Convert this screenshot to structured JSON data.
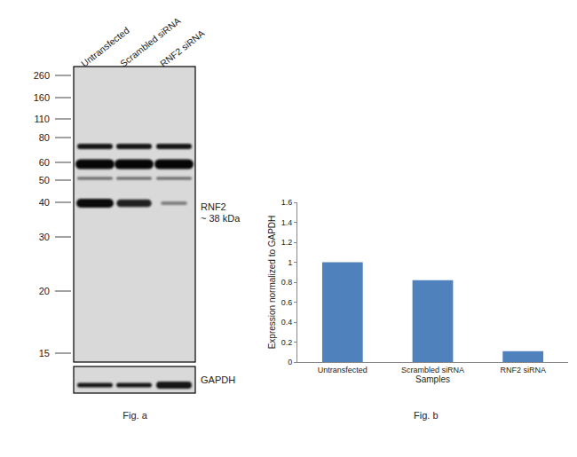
{
  "chart_data": {
    "type": "bar",
    "categories": [
      "Untransfected",
      "Scrambled siRNA",
      "RNF2 siRNA"
    ],
    "values": [
      1.0,
      0.82,
      0.11
    ],
    "color": "#4f81bd",
    "x_label": "Samples",
    "y_label": "Expression normalized to GAPDH",
    "ylim": [
      0,
      1.6
    ],
    "yticks": [
      0,
      0.2,
      0.4,
      0.6,
      0.8,
      1,
      1.2,
      1.4,
      1.6
    ],
    "grid": false,
    "caption": "Fig. b"
  },
  "figure_a": {
    "lanes": [
      "Untransfected",
      "Scrambled siRNA",
      "RNF2 siRNA"
    ],
    "markers": [
      260,
      160,
      110,
      80,
      60,
      50,
      40,
      30,
      20,
      15
    ],
    "target_label": "RNF2",
    "target_size": "~ 38 kDa",
    "loading_control": "GAPDH",
    "caption": "Fig. a"
  }
}
